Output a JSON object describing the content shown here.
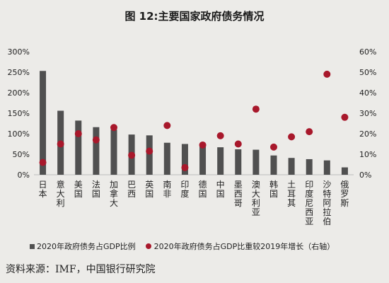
{
  "title": "图 12:主要国家政府债务情况",
  "source": "资料来源：IMF，中国银行研究院",
  "chart_data": {
    "type": "bar",
    "categories": [
      "日本",
      "意大利",
      "美国",
      "法国",
      "加拿大",
      "巴西",
      "英国",
      "南非",
      "印度",
      "德国",
      "中国",
      "墨西哥",
      "澳大利亚",
      "韩国",
      "土耳其",
      "印度尼西亚",
      "沙特阿拉伯",
      "俄罗斯"
    ],
    "series": [
      {
        "name": "2020年政府债务占GDP比例",
        "type": "bar",
        "axis": "left",
        "color": "#505050",
        "values": [
          253,
          156,
          132,
          116,
          110,
          98,
          96,
          78,
          75,
          70,
          67,
          62,
          61,
          47,
          41,
          38,
          35,
          18
        ]
      },
      {
        "name": "2020年政府债务占GDP比重较2019年增长（右轴）",
        "type": "scatter",
        "axis": "right",
        "color": "#a8182b",
        "values": [
          6,
          15,
          20,
          17,
          23,
          9.5,
          11.5,
          24,
          3.5,
          14.5,
          19,
          15,
          32,
          13.5,
          18.5,
          21,
          49,
          28
        ]
      }
    ],
    "y_left": {
      "ticks": [
        "0%",
        "50%",
        "100%",
        "150%",
        "200%",
        "250%",
        "300%"
      ],
      "lim": [
        0,
        300
      ]
    },
    "y_right": {
      "ticks": [
        "0%",
        "10%",
        "20%",
        "30%",
        "40%",
        "50%",
        "60%"
      ],
      "lim": [
        0,
        60
      ]
    },
    "grid": false,
    "legend_position": "bottom"
  }
}
